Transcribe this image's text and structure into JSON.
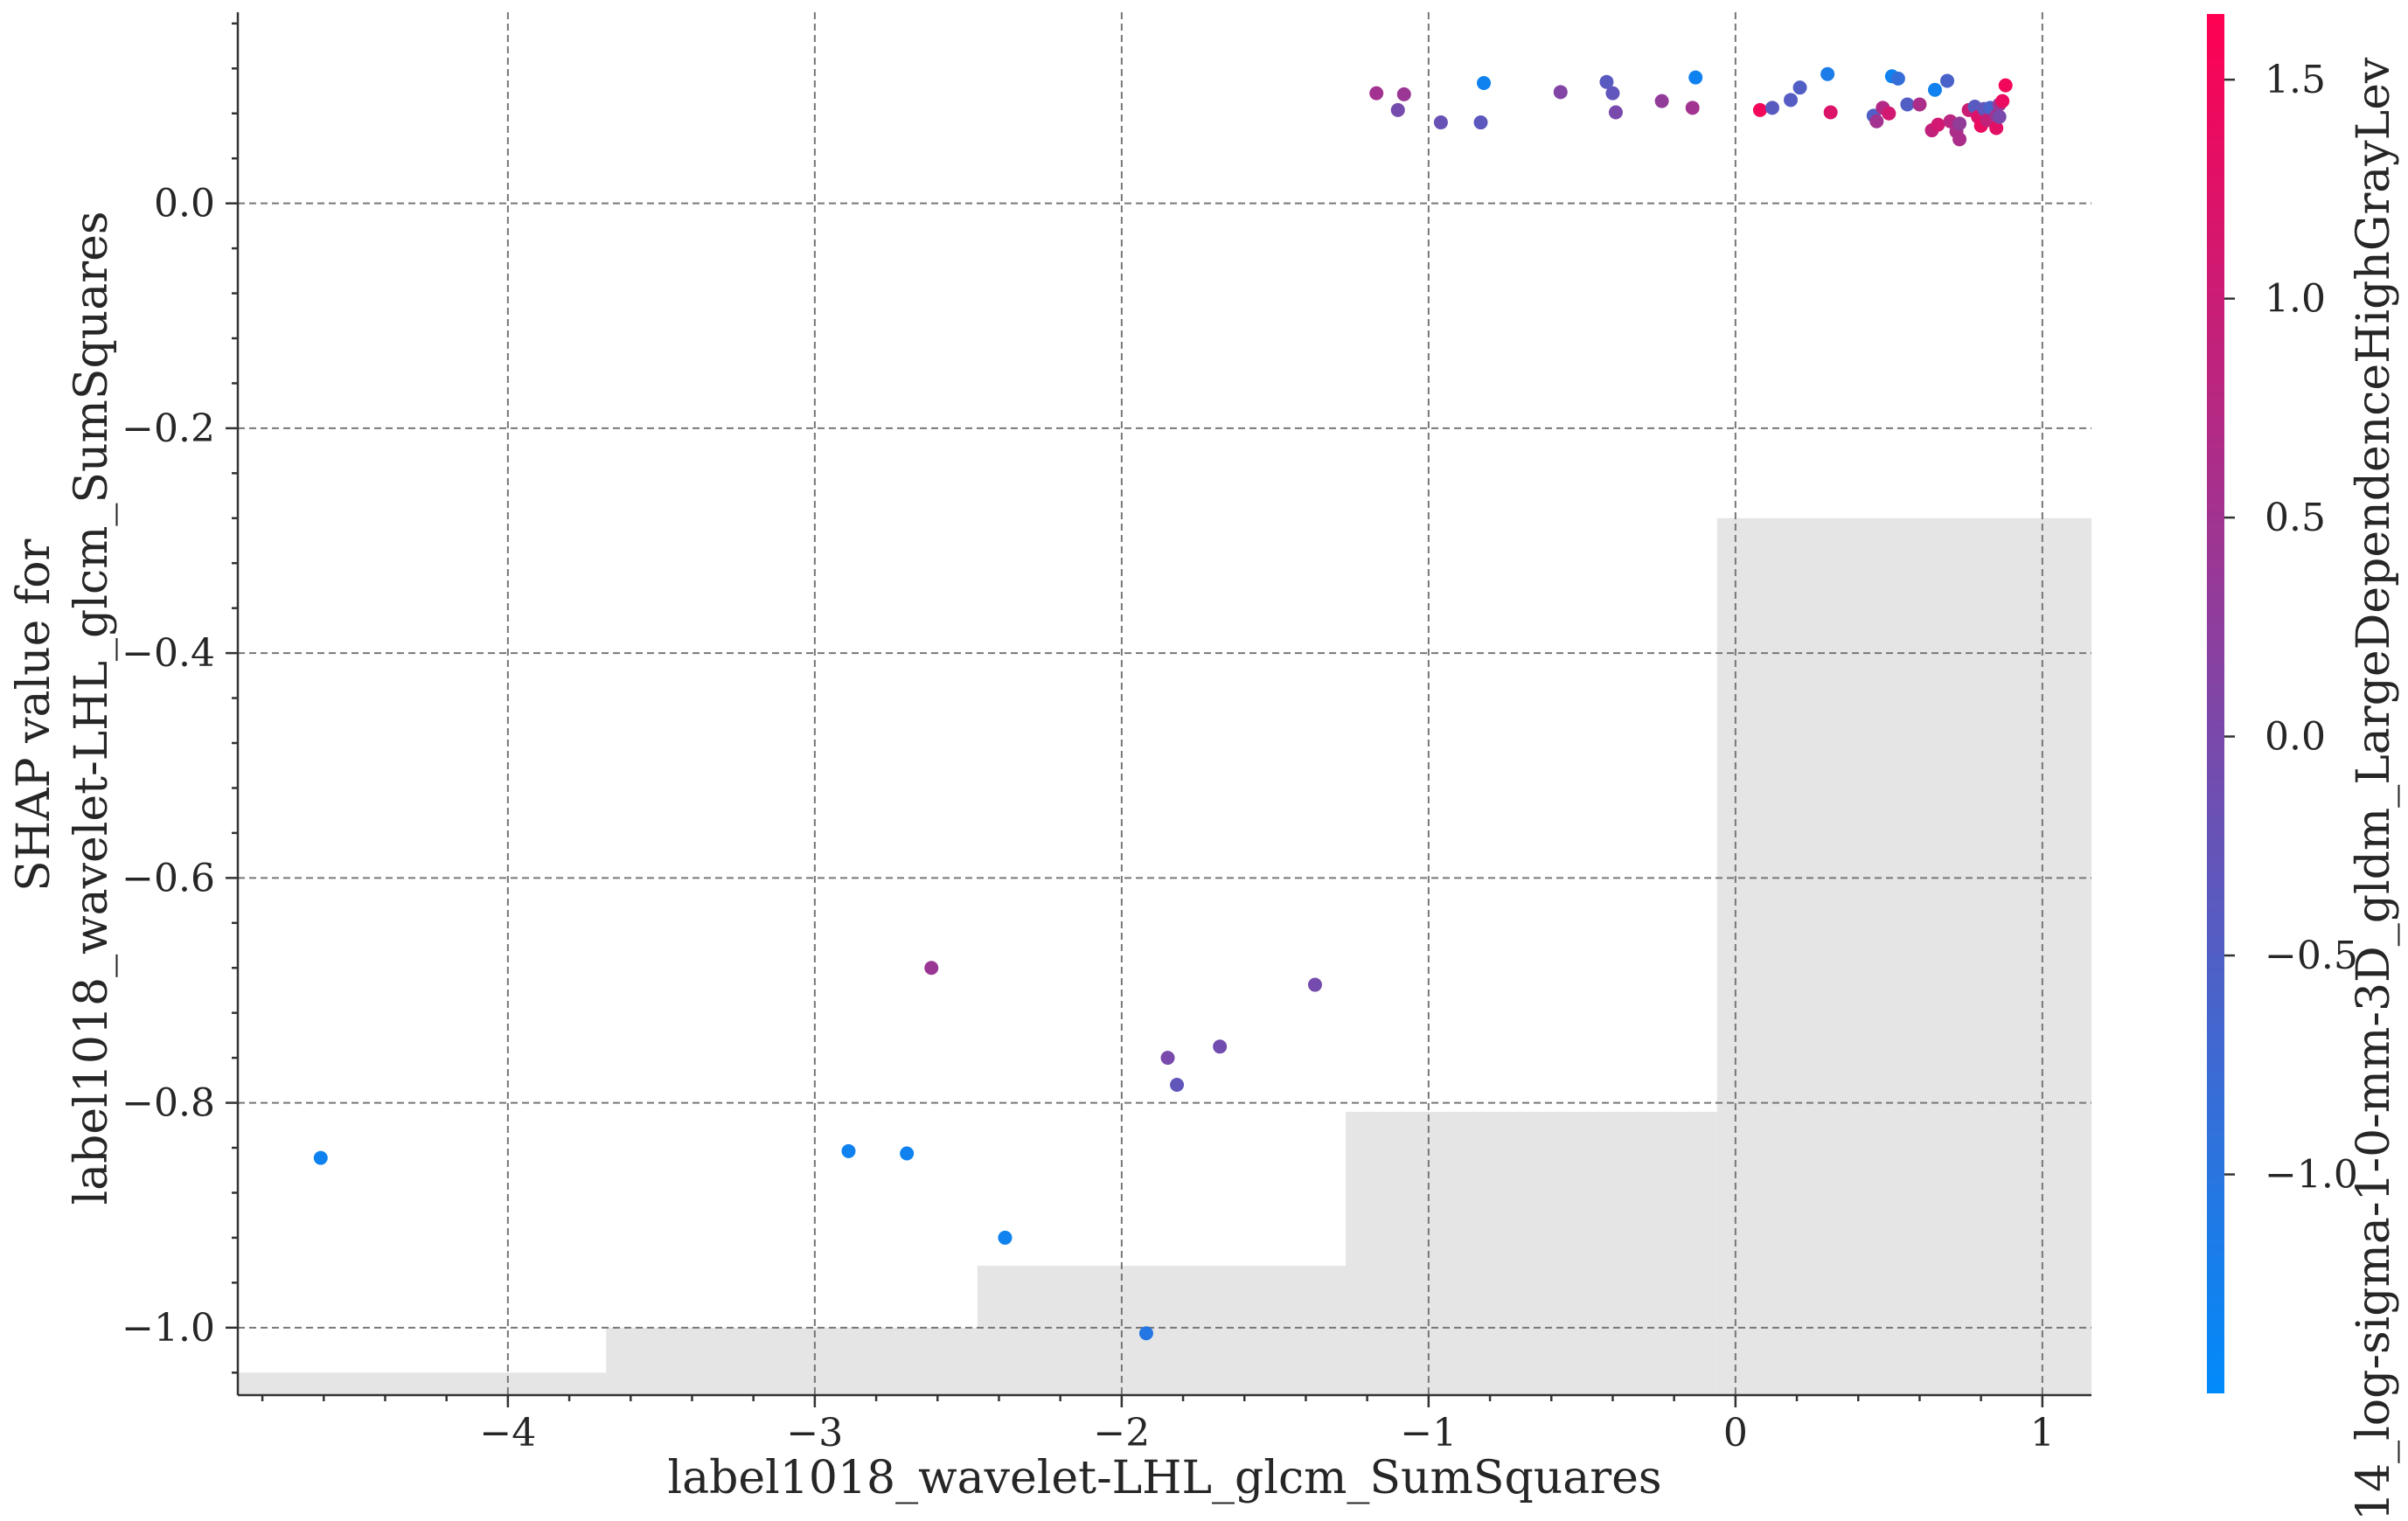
{
  "chart_data": {
    "type": "scatter",
    "title": "",
    "xlabel": "label1018_wavelet-LHL_glcm_SumSquares",
    "ylabel": [
      "SHAP value for",
      "label1018_wavelet-LHL_glcm_SumSquares"
    ],
    "xlim": [
      -4.88,
      1.16
    ],
    "ylim": [
      -1.06,
      0.17
    ],
    "xticks": [
      -4,
      -3,
      -2,
      -1,
      0,
      1
    ],
    "xtick_labels": [
      "−4",
      "−3",
      "−2",
      "−1",
      "0",
      "1"
    ],
    "yticks": [
      0.0,
      -0.2,
      -0.4,
      -0.6,
      -0.8,
      -1.0
    ],
    "ytick_labels": [
      "0.0",
      "−0.2",
      "−0.4",
      "−0.6",
      "−0.8",
      "−1.0"
    ],
    "grid": true,
    "colorbar": {
      "label": "14_log-sigma-1-0-mm-3D_gldm_LargeDependenceHighGrayLev",
      "range": [
        -1.5,
        1.65
      ],
      "ticks": [
        1.5,
        1.0,
        0.5,
        0.0,
        -0.5,
        -1.0
      ],
      "tick_labels": [
        "1.5",
        "1.0",
        "0.5",
        "0.0",
        "−0.5",
        "−1.0"
      ],
      "colormap": [
        "#008bfb",
        "#ff0052"
      ]
    },
    "histogram": {
      "color": "#e5e5e5",
      "bins": [
        {
          "x0": -4.88,
          "x1": -3.68,
          "top": -1.04
        },
        {
          "x0": -3.68,
          "x1": -2.47,
          "top": -1.0
        },
        {
          "x0": -2.47,
          "x1": -1.27,
          "top": -0.945
        },
        {
          "x0": -1.27,
          "x1": -0.06,
          "top": -0.808
        },
        {
          "x0": -0.06,
          "x1": 1.16,
          "top": -0.28
        }
      ]
    },
    "points": [
      {
        "x": -4.61,
        "y": -0.849,
        "c": -1.3
      },
      {
        "x": -2.89,
        "y": -0.843,
        "c": -1.3
      },
      {
        "x": -2.7,
        "y": -0.845,
        "c": -1.3
      },
      {
        "x": -2.38,
        "y": -0.92,
        "c": -1.3
      },
      {
        "x": -1.92,
        "y": -1.005,
        "c": -1.05
      },
      {
        "x": -2.62,
        "y": -0.68,
        "c": 0.4
      },
      {
        "x": -1.85,
        "y": -0.76,
        "c": 0.0
      },
      {
        "x": -1.82,
        "y": -0.784,
        "c": -0.3
      },
      {
        "x": -1.68,
        "y": -0.75,
        "c": -0.1
      },
      {
        "x": -1.37,
        "y": -0.695,
        "c": -0.05
      },
      {
        "x": -1.17,
        "y": 0.098,
        "c": 0.5
      },
      {
        "x": -1.1,
        "y": 0.083,
        "c": -0.05
      },
      {
        "x": -1.08,
        "y": 0.097,
        "c": 0.4
      },
      {
        "x": -0.96,
        "y": 0.072,
        "c": -0.2
      },
      {
        "x": -0.83,
        "y": 0.072,
        "c": -0.35
      },
      {
        "x": -0.82,
        "y": 0.107,
        "c": -1.3
      },
      {
        "x": -0.57,
        "y": 0.099,
        "c": 0.1
      },
      {
        "x": -0.42,
        "y": 0.108,
        "c": -0.4
      },
      {
        "x": -0.4,
        "y": 0.098,
        "c": -0.3
      },
      {
        "x": -0.39,
        "y": 0.081,
        "c": 0.0
      },
      {
        "x": -0.24,
        "y": 0.091,
        "c": 0.3
      },
      {
        "x": -0.14,
        "y": 0.085,
        "c": 0.5
      },
      {
        "x": -0.13,
        "y": 0.112,
        "c": -1.3
      },
      {
        "x": 0.08,
        "y": 0.083,
        "c": 1.5
      },
      {
        "x": 0.12,
        "y": 0.085,
        "c": -0.4
      },
      {
        "x": 0.18,
        "y": 0.092,
        "c": -0.45
      },
      {
        "x": 0.21,
        "y": 0.103,
        "c": -0.5
      },
      {
        "x": 0.3,
        "y": 0.115,
        "c": -1.15
      },
      {
        "x": 0.31,
        "y": 0.081,
        "c": 1.2
      },
      {
        "x": 0.45,
        "y": 0.078,
        "c": -0.5
      },
      {
        "x": 0.46,
        "y": 0.073,
        "c": 0.5
      },
      {
        "x": 0.48,
        "y": 0.085,
        "c": 0.7
      },
      {
        "x": 0.5,
        "y": 0.08,
        "c": 1.1
      },
      {
        "x": 0.51,
        "y": 0.113,
        "c": -1.3
      },
      {
        "x": 0.53,
        "y": 0.111,
        "c": -0.85
      },
      {
        "x": 0.56,
        "y": 0.088,
        "c": -0.5
      },
      {
        "x": 0.6,
        "y": 0.088,
        "c": 0.6
      },
      {
        "x": 0.64,
        "y": 0.065,
        "c": 0.9
      },
      {
        "x": 0.65,
        "y": 0.101,
        "c": -1.3
      },
      {
        "x": 0.66,
        "y": 0.07,
        "c": 1.1
      },
      {
        "x": 0.69,
        "y": 0.109,
        "c": -0.6
      },
      {
        "x": 0.7,
        "y": 0.073,
        "c": 0.8
      },
      {
        "x": 0.72,
        "y": 0.064,
        "c": 0.6
      },
      {
        "x": 0.73,
        "y": 0.071,
        "c": 0.3
      },
      {
        "x": 0.73,
        "y": 0.057,
        "c": 0.6
      },
      {
        "x": 0.76,
        "y": 0.083,
        "c": 1.0
      },
      {
        "x": 0.78,
        "y": 0.086,
        "c": -0.4
      },
      {
        "x": 0.79,
        "y": 0.077,
        "c": 1.2
      },
      {
        "x": 0.8,
        "y": 0.069,
        "c": 1.4
      },
      {
        "x": 0.81,
        "y": 0.084,
        "c": -0.3
      },
      {
        "x": 0.82,
        "y": 0.074,
        "c": 0.9
      },
      {
        "x": 0.83,
        "y": 0.085,
        "c": -0.6
      },
      {
        "x": 0.85,
        "y": 0.078,
        "c": 0.5
      },
      {
        "x": 0.85,
        "y": 0.067,
        "c": 1.3
      },
      {
        "x": 0.86,
        "y": 0.088,
        "c": 0.4
      },
      {
        "x": 0.86,
        "y": 0.077,
        "c": 0.0
      },
      {
        "x": 0.87,
        "y": 0.091,
        "c": 1.4
      },
      {
        "x": 0.88,
        "y": 0.105,
        "c": 1.5
      }
    ]
  }
}
